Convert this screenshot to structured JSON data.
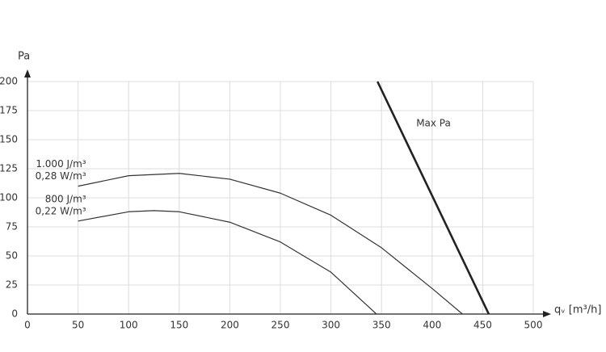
{
  "chart_data": {
    "type": "line",
    "x_label": "qᵥ [m³/h]",
    "y_label": "Pa",
    "xlim": [
      0,
      500
    ],
    "xticks": [
      0,
      50,
      100,
      150,
      200,
      250,
      300,
      350,
      400,
      450,
      500
    ],
    "ylim": [
      0,
      200
    ],
    "yticks": [
      0,
      25,
      50,
      75,
      100,
      125,
      150,
      175,
      200
    ],
    "grid": true,
    "series": [
      {
        "name": "1.000 J/m³",
        "power": "0,28 W/m³",
        "color": "#333333",
        "x": [
          50,
          100,
          150,
          200,
          250,
          300,
          350,
          400,
          430
        ],
        "values": [
          110,
          119,
          121,
          116,
          104,
          85,
          57,
          22,
          0
        ]
      },
      {
        "name": "800 J/m³",
        "power": "0,22 W/m³",
        "color": "#333333",
        "x": [
          50,
          100,
          125,
          150,
          200,
          250,
          300,
          345
        ],
        "values": [
          80,
          88,
          89,
          88,
          79,
          62,
          36,
          0
        ]
      },
      {
        "name": "Max Pa",
        "color": "#222222",
        "x": [
          346,
          456
        ],
        "values": [
          200,
          0
        ]
      }
    ]
  }
}
